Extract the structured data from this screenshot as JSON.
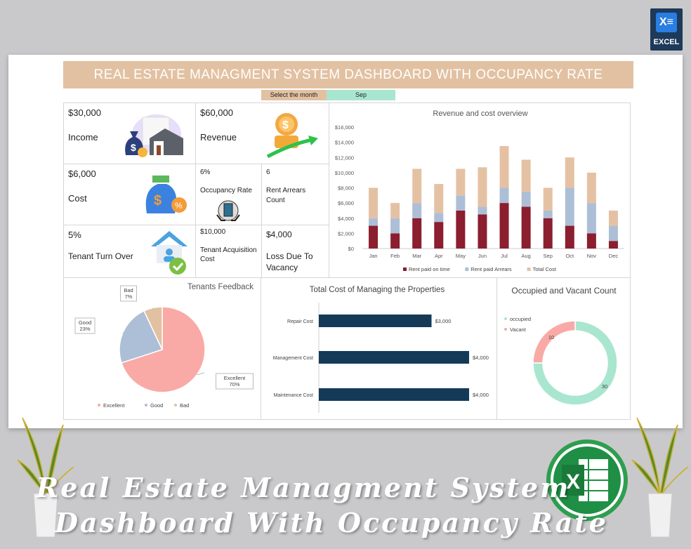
{
  "header": {
    "title": "REAL ESTATE MANAGMENT SYSTEM DASHBOARD WITH OCCUPANCY RATE",
    "select_label": "Select the month",
    "selected_month": "Sep"
  },
  "badge": {
    "label": "EXCEL"
  },
  "kpis": {
    "income": {
      "value": "$30,000",
      "label": "Income"
    },
    "revenue": {
      "value": "$60,000",
      "label": "Revenue"
    },
    "cost": {
      "value": "$6,000",
      "label": "Cost"
    },
    "occupancy": {
      "value": "6%",
      "label": "Occupancy Rate"
    },
    "arrears": {
      "value": "6",
      "label": "Rent Arrears Count"
    },
    "turnover": {
      "value": "5%",
      "label": "Tenant Turn Over"
    },
    "acquisition": {
      "value": "$10,000",
      "label": "Tenant Acquisition Cost"
    },
    "vacancy_loss": {
      "value": "$4,000",
      "label": "Loss Due To Vacancy"
    }
  },
  "chart_data": [
    {
      "type": "bar",
      "stacked": true,
      "title": "Revenue and cost overview",
      "categories": [
        "Jan",
        "Feb",
        "Mar",
        "Apr",
        "May",
        "Jun",
        "Jul",
        "Aug",
        "Sep",
        "Oct",
        "Nov",
        "Dec"
      ],
      "ylim": [
        0,
        16000
      ],
      "yticks": [
        "$0",
        "$2,000",
        "$4,000",
        "$6,000",
        "$8,000",
        "$10,000",
        "$12,000",
        "$14,000",
        "$16,000"
      ],
      "legend_position": "bottom",
      "series": [
        {
          "name": "Rent paid on time",
          "color": "#8b1e2f",
          "values": [
            3000,
            2000,
            4000,
            3500,
            5000,
            4500,
            6000,
            5500,
            4000,
            3000,
            2000,
            1000
          ]
        },
        {
          "name": "Rent paid Arrears",
          "color": "#adbfd6",
          "values": [
            1000,
            2000,
            2000,
            1200,
            2000,
            1000,
            2000,
            2000,
            1000,
            5000,
            4000,
            2000
          ]
        },
        {
          "name": "Total Cost",
          "color": "#e5c1a3",
          "values": [
            4000,
            2000,
            4500,
            3800,
            3500,
            5200,
            5500,
            4200,
            3000,
            4000,
            4000,
            2000
          ]
        }
      ]
    },
    {
      "type": "pie",
      "title": "Tenants Feedback",
      "legend_position": "bottom",
      "slices": [
        {
          "name": "Excellent",
          "value": 70,
          "label": "70%",
          "color": "#f9aaa6"
        },
        {
          "name": "Good",
          "value": 23,
          "label": "23%",
          "color": "#adbfd6"
        },
        {
          "name": "Bad",
          "value": 7,
          "label": "7%",
          "color": "#e2c1a2"
        }
      ]
    },
    {
      "type": "bar",
      "orientation": "horizontal",
      "title": "Total Cost of Managing the Properties",
      "xlim": [
        0,
        4000
      ],
      "categories": [
        "Repair Cost",
        "Management Cost",
        "Maintenance Cost"
      ],
      "values": [
        3000,
        4000,
        4000
      ],
      "labels": [
        "$3,000",
        "$4,000",
        "$4,000"
      ],
      "color": "#143a57"
    },
    {
      "type": "pie",
      "donut": true,
      "title": "Occupied and Vacant Count",
      "legend_position": "top-left",
      "slices": [
        {
          "name": "occupied",
          "value": 30,
          "label": "30",
          "color": "#a9e6cf"
        },
        {
          "name": "Vacant",
          "value": 10,
          "label": "10",
          "color": "#f9aaa6"
        }
      ]
    }
  ],
  "footer": {
    "line1": "Real Estate Managment System",
    "line2": "Dashboard With Occupancy Rate"
  }
}
